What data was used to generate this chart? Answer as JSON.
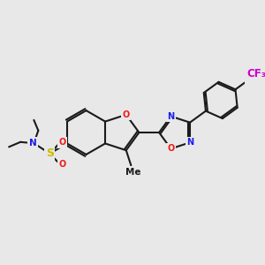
{
  "background_color": "#e8e8e8",
  "bond_color": "#1a1a1a",
  "atom_colors": {
    "N": "#1a1aee",
    "O": "#ee1a1a",
    "S": "#ccbb00",
    "F": "#cc00cc",
    "C": "#1a1a1a"
  },
  "bond_lw": 1.5,
  "figsize": [
    3.0,
    3.0
  ],
  "dpi": 100,
  "xlim": [
    -1.5,
    8.5
  ],
  "ylim": [
    -0.5,
    6.5
  ]
}
